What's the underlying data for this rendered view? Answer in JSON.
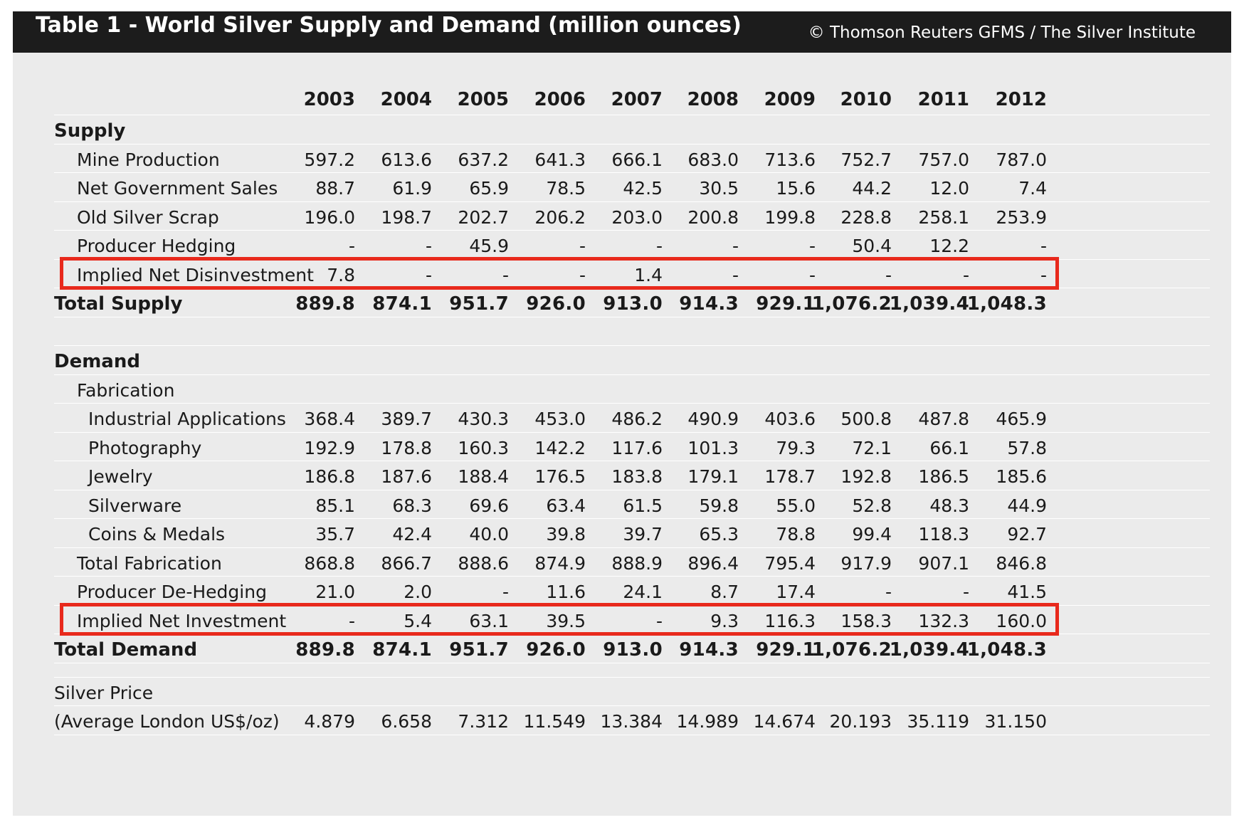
{
  "header": {
    "title": "Table 1 - World Silver Supply and Demand (million ounces)",
    "credit": "© Thomson Reuters GFMS / The Silver Institute"
  },
  "colors": {
    "highlight": "#e8291c",
    "header_bg": "#1c1c1c",
    "panel_bg": "#ebebeb"
  },
  "years": [
    "2003",
    "2004",
    "2005",
    "2006",
    "2007",
    "2008",
    "2009",
    "2010",
    "2011",
    "2012"
  ],
  "rows": [
    {
      "label": "Supply",
      "type": "section",
      "indent": 0,
      "values": []
    },
    {
      "label": "Mine Production",
      "type": "normal",
      "indent": 1,
      "values": [
        "597.2",
        "613.6",
        "637.2",
        "641.3",
        "666.1",
        "683.0",
        "713.6",
        "752.7",
        "757.0",
        "787.0"
      ]
    },
    {
      "label": "Net Government Sales",
      "type": "normal",
      "indent": 1,
      "values": [
        "88.7",
        "61.9",
        "65.9",
        "78.5",
        "42.5",
        "30.5",
        "15.6",
        "44.2",
        "12.0",
        "7.4"
      ]
    },
    {
      "label": "Old Silver Scrap",
      "type": "normal",
      "indent": 1,
      "values": [
        "196.0",
        "198.7",
        "202.7",
        "206.2",
        "203.0",
        "200.8",
        "199.8",
        "228.8",
        "258.1",
        "253.9"
      ]
    },
    {
      "label": "Producer Hedging",
      "type": "normal",
      "indent": 1,
      "values": [
        "-",
        "-",
        "45.9",
        "-",
        "-",
        "-",
        "-",
        "50.4",
        "12.2",
        "-"
      ]
    },
    {
      "label": "Implied Net Disinvestment",
      "type": "highlight",
      "indent": 1,
      "values": [
        "7.8",
        "-",
        "-",
        "-",
        "1.4",
        "-",
        "-",
        "-",
        "-",
        "-"
      ]
    },
    {
      "label": "Total Supply",
      "type": "bold",
      "indent": 0,
      "values": [
        "889.8",
        "874.1",
        "951.7",
        "926.0",
        "913.0",
        "914.3",
        "929.1",
        "1,076.2",
        "1,039.4",
        "1,048.3"
      ]
    },
    {
      "label": "",
      "type": "blank",
      "indent": 0,
      "values": []
    },
    {
      "label": "Demand",
      "type": "section",
      "indent": 0,
      "values": []
    },
    {
      "label": "Fabrication",
      "type": "normal",
      "indent": 1,
      "values": []
    },
    {
      "label": "Industrial Applications",
      "type": "normal",
      "indent": 2,
      "values": [
        "368.4",
        "389.7",
        "430.3",
        "453.0",
        "486.2",
        "490.9",
        "403.6",
        "500.8",
        "487.8",
        "465.9"
      ]
    },
    {
      "label": "Photography",
      "type": "normal",
      "indent": 2,
      "values": [
        "192.9",
        "178.8",
        "160.3",
        "142.2",
        "117.6",
        "101.3",
        "79.3",
        "72.1",
        "66.1",
        "57.8"
      ]
    },
    {
      "label": "Jewelry",
      "type": "normal",
      "indent": 2,
      "values": [
        "186.8",
        "187.6",
        "188.4",
        "176.5",
        "183.8",
        "179.1",
        "178.7",
        "192.8",
        "186.5",
        "185.6"
      ]
    },
    {
      "label": "Silverware",
      "type": "normal",
      "indent": 2,
      "values": [
        "85.1",
        "68.3",
        "69.6",
        "63.4",
        "61.5",
        "59.8",
        "55.0",
        "52.8",
        "48.3",
        "44.9"
      ]
    },
    {
      "label": "Coins & Medals",
      "type": "normal",
      "indent": 2,
      "values": [
        "35.7",
        "42.4",
        "40.0",
        "39.8",
        "39.7",
        "65.3",
        "78.8",
        "99.4",
        "118.3",
        "92.7"
      ]
    },
    {
      "label": "Total Fabrication",
      "type": "normal",
      "indent": 1,
      "values": [
        "868.8",
        "866.7",
        "888.6",
        "874.9",
        "888.9",
        "896.4",
        "795.4",
        "917.9",
        "907.1",
        "846.8"
      ]
    },
    {
      "label": "Producer De-Hedging",
      "type": "normal",
      "indent": 1,
      "values": [
        "21.0",
        "2.0",
        "-",
        "11.6",
        "24.1",
        "8.7",
        "17.4",
        "-",
        "-",
        "41.5"
      ]
    },
    {
      "label": "Implied Net Investment",
      "type": "highlight",
      "indent": 1,
      "values": [
        "-",
        "5.4",
        "63.1",
        "39.5",
        "-",
        "9.3",
        "116.3",
        "158.3",
        "132.3",
        "160.0"
      ]
    },
    {
      "label": "Total Demand",
      "type": "bold",
      "indent": 0,
      "values": [
        "889.8",
        "874.1",
        "951.7",
        "926.0",
        "913.0",
        "914.3",
        "929.1",
        "1,076.2",
        "1,039.4",
        "1,048.3"
      ]
    },
    {
      "label": "",
      "type": "blank-short",
      "indent": 0,
      "values": []
    },
    {
      "label": "Silver Price",
      "type": "normal",
      "indent": 0,
      "values": []
    },
    {
      "label": "(Average London US$/oz)",
      "type": "normal",
      "indent": 0,
      "values": [
        "4.879",
        "6.658",
        "7.312",
        "11.549",
        "13.384",
        "14.989",
        "14.674",
        "20.193",
        "35.119",
        "31.150"
      ]
    }
  ]
}
